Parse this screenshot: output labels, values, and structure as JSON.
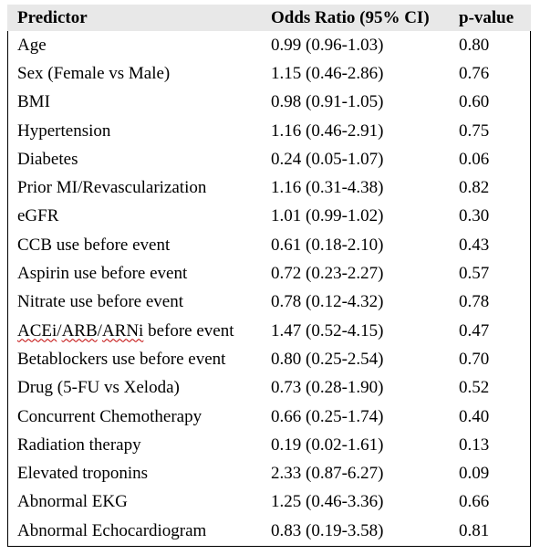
{
  "table": {
    "headers": {
      "predictor": "Predictor",
      "odds_ratio": "Odds Ratio (95% CI)",
      "p_value": "p-value"
    },
    "rows": [
      {
        "predictor": "Age",
        "odds_ratio": "0.99 (0.96-1.03)",
        "p_value": "0.80"
      },
      {
        "predictor": "Sex (Female vs Male)",
        "odds_ratio": "1.15 (0.46-2.86)",
        "p_value": "0.76"
      },
      {
        "predictor": "BMI",
        "odds_ratio": "0.98 (0.91-1.05)",
        "p_value": "0.60"
      },
      {
        "predictor": "Hypertension",
        "odds_ratio": "1.16 (0.46-2.91)",
        "p_value": "0.75"
      },
      {
        "predictor": "Diabetes",
        "odds_ratio": "0.24 (0.05-1.07)",
        "p_value": "0.06"
      },
      {
        "predictor": "Prior MI/Revascularization",
        "odds_ratio": "1.16 (0.31-4.38)",
        "p_value": "0.82"
      },
      {
        "predictor": "eGFR",
        "odds_ratio": "1.01 (0.99-1.02)",
        "p_value": "0.30"
      },
      {
        "predictor": "CCB use before event",
        "odds_ratio": "0.61 (0.18-2.10)",
        "p_value": "0.43"
      },
      {
        "predictor": "Aspirin use before event",
        "odds_ratio": "0.72 (0.23-2.27)",
        "p_value": "0.57"
      },
      {
        "predictor": "Nitrate use before event",
        "odds_ratio": "0.78 (0.12-4.32)",
        "p_value": "0.78"
      },
      {
        "predictor_parts": [
          "ACEi",
          "/",
          "ARB",
          "/",
          "ARNi",
          " before event"
        ],
        "odds_ratio": "1.47 (0.52-4.15)",
        "p_value": "0.47"
      },
      {
        "predictor": "Betablockers use before event",
        "odds_ratio": "0.80 (0.25-2.54)",
        "p_value": "0.70"
      },
      {
        "predictor": "Drug (5-FU vs Xeloda)",
        "odds_ratio": "0.73 (0.28-1.90)",
        "p_value": "0.52"
      },
      {
        "predictor": "Concurrent Chemotherapy",
        "odds_ratio": "0.66 (0.25-1.74)",
        "p_value": "0.40"
      },
      {
        "predictor": "Radiation therapy",
        "odds_ratio": "0.19 (0.02-1.61)",
        "p_value": "0.13"
      },
      {
        "predictor": "Elevated troponins",
        "odds_ratio": "2.33 (0.87-6.27)",
        "p_value": "0.09"
      },
      {
        "predictor": "Abnormal EKG",
        "odds_ratio": "1.25 (0.46-3.36)",
        "p_value": "0.66"
      },
      {
        "predictor": "Abnormal Echocardiogram",
        "odds_ratio": "0.83 (0.19-3.58)",
        "p_value": "0.81"
      }
    ]
  },
  "colors": {
    "header_background": "#e8e8e8",
    "border": "#000000",
    "spellcheck_underline": "#c00000"
  }
}
